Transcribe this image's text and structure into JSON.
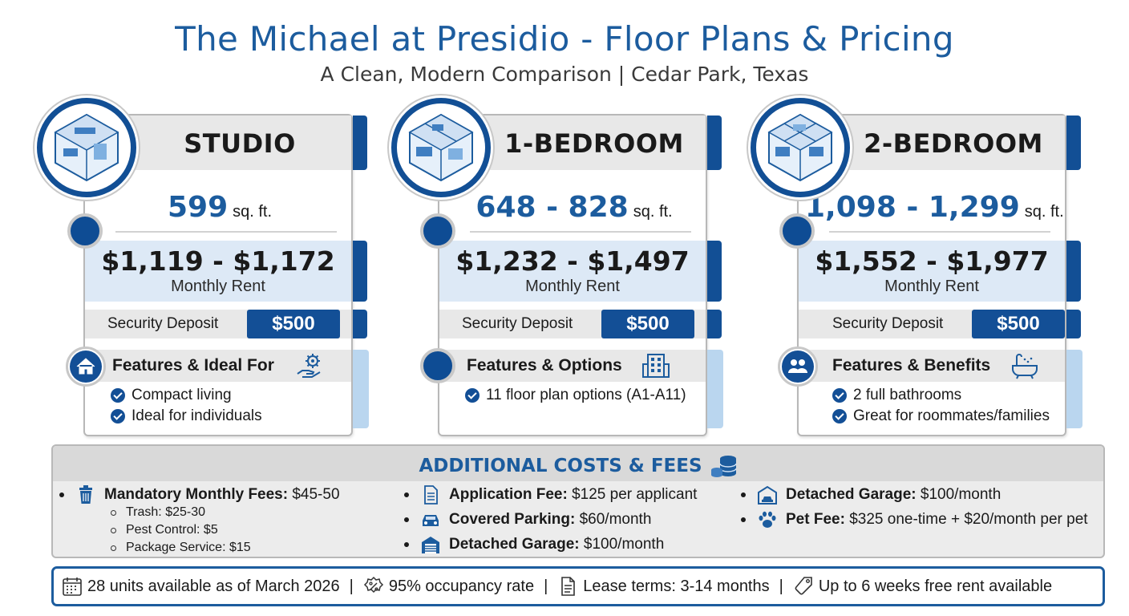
{
  "header": {
    "title": "The Michael at Presidio - Floor Plans & Pricing",
    "subtitle": "A Clean, Modern Comparison | Cedar Park, Texas"
  },
  "plans": [
    {
      "name": "STUDIO",
      "sqft": "599",
      "sqft_unit": "sq. ft.",
      "rent": "$1,119 - $1,172",
      "rent_label": "Monthly Rent",
      "deposit_label": "Security Deposit",
      "deposit": "$500",
      "features_title": "Features & Ideal For",
      "features": [
        "Compact living",
        "Ideal for individuals"
      ]
    },
    {
      "name": "1-BEDROOM",
      "sqft": "648 - 828",
      "sqft_unit": "sq. ft.",
      "rent": "$1,232 - $1,497",
      "rent_label": "Monthly Rent",
      "deposit_label": "Security Deposit",
      "deposit": "$500",
      "features_title": "Features & Options",
      "features": [
        "11 floor plan options (A1-A11)"
      ]
    },
    {
      "name": "2-BEDROOM",
      "sqft": "1,098 - 1,299",
      "sqft_unit": "sq. ft.",
      "rent": "$1,552 - $1,977",
      "rent_label": "Monthly Rent",
      "deposit_label": "Security Deposit",
      "deposit": "$500",
      "features_title": "Features & Benefits",
      "features": [
        "2 full bathrooms",
        "Great for roommates/families"
      ]
    }
  ],
  "costs": {
    "title": "ADDITIONAL COSTS & FEES",
    "mandatory_label": "Mandatory Monthly Fees:",
    "mandatory_value": "$45-50",
    "mandatory_items": [
      "Trash: $25-30",
      "Pest Control: $5",
      "Package Service: $15"
    ],
    "col2": [
      {
        "label": "Application Fee:",
        "value": "$125 per applicant"
      },
      {
        "label": "Covered Parking:",
        "value": "$60/month"
      },
      {
        "label": "Detached Garage:",
        "value": "$100/month"
      }
    ],
    "col3": [
      {
        "label": "Detached Garage:",
        "value": "$100/month"
      },
      {
        "label": "Pet Fee:",
        "value": "$325 one-time + $20/month per pet"
      }
    ]
  },
  "footer": {
    "units": "28 units available as of March 2026",
    "occupancy": "95% occupancy rate",
    "lease": "Lease terms: 3-14 months",
    "promo": "Up to 6 weeks free rent available",
    "separator": "|"
  },
  "colors": {
    "brand_blue": "#1c5c9e",
    "navy": "#124f95",
    "light_blue": "#dde9f6",
    "panel_gray": "#e8e8e8"
  }
}
